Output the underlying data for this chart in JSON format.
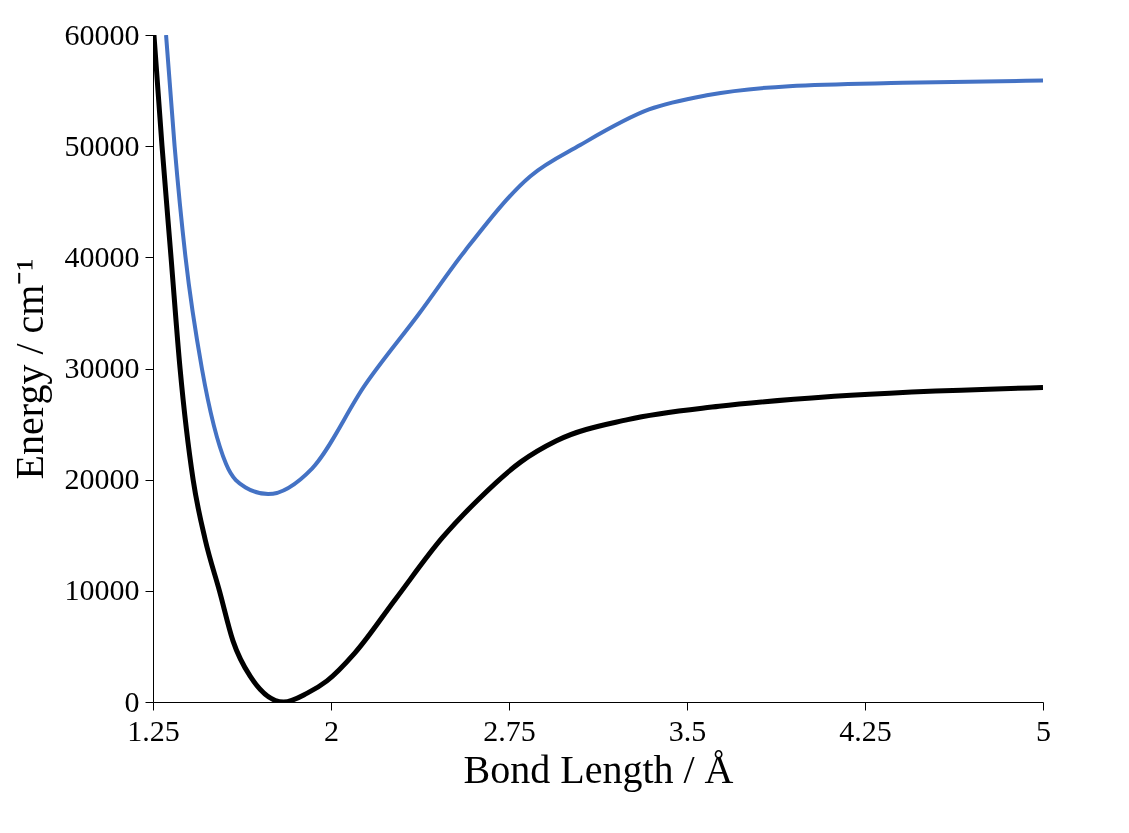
{
  "chart_data": {
    "type": "line",
    "xlabel": "Bond Length / Å",
    "ylabel": "Energy / cm⁻¹",
    "xlim": [
      1.25,
      5
    ],
    "xticks": [
      1.25,
      2,
      2.75,
      3.5,
      4.25,
      5
    ],
    "ylim": [
      0,
      60000
    ],
    "yticks": [
      0,
      10000,
      20000,
      30000,
      40000,
      50000,
      60000
    ],
    "grid": false,
    "legend": false,
    "marker": "none",
    "line_style": "solid",
    "series": [
      {
        "color": "#4472c4",
        "x": [
          1.305,
          1.341,
          1.387,
          1.456,
          1.558,
          1.64,
          1.735,
          1.92,
          2.143,
          2.37,
          2.565,
          2.84,
          3.05,
          3.34,
          3.59,
          3.93,
          4.41,
          5.0
        ],
        "values": [
          60000,
          50000,
          40000,
          30000,
          21400,
          19300,
          18700,
          21000,
          28500,
          34900,
          40600,
          47300,
          50100,
          53300,
          54600,
          55400,
          55700,
          55900
        ]
      },
      {
        "color": "#000000",
        "x": [
          1.254,
          1.288,
          1.326,
          1.364,
          1.419,
          1.47,
          1.53,
          1.587,
          1.66,
          1.8,
          1.9,
          1.983,
          2.1,
          2.27,
          2.47,
          2.62,
          2.8,
          2.95,
          3.25,
          3.635,
          4.12,
          5.0
        ],
        "values": [
          60000,
          50000,
          40000,
          30000,
          20000,
          14600,
          10000,
          5500,
          2300,
          0,
          800,
          1900,
          4400,
          9200,
          14800,
          18200,
          21600,
          23500,
          25400,
          26600,
          27500,
          28300
        ]
      }
    ]
  }
}
